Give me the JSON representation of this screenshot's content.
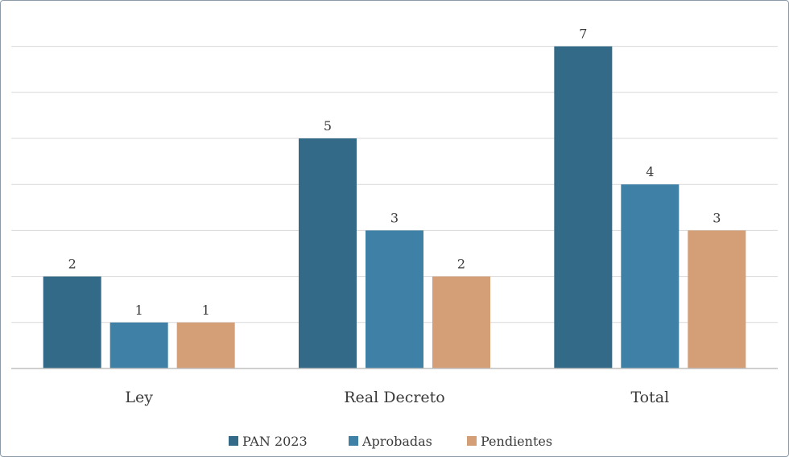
{
  "chart_data": {
    "type": "bar",
    "title": "",
    "xlabel": "",
    "ylabel": "",
    "categories": [
      "Ley",
      "Real Decreto",
      "Total"
    ],
    "series": [
      {
        "name": "PAN 2023",
        "values": [
          2,
          5,
          7
        ],
        "color": "#336a87"
      },
      {
        "name": "Aprobadas",
        "values": [
          1,
          3,
          4
        ],
        "color": "#3f80a6"
      },
      {
        "name": "Pendientes",
        "values": [
          1,
          2,
          3
        ],
        "color": "#d49e76"
      }
    ],
    "ylim": [
      0,
      7
    ],
    "grid": true,
    "data_labels": true,
    "legend_position": "bottom"
  }
}
